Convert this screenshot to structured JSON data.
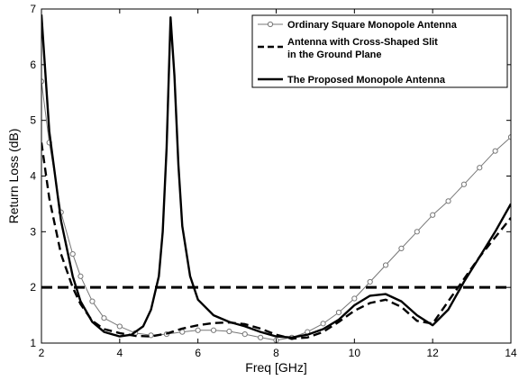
{
  "chart_data": {
    "type": "line",
    "xlabel": "Freq [GHz]",
    "ylabel": "Return Loss (dB)",
    "xlim": [
      2,
      14
    ],
    "ylim": [
      1,
      7
    ],
    "xticks": [
      2,
      4,
      6,
      8,
      10,
      12,
      14
    ],
    "yticks": [
      1,
      2,
      3,
      4,
      5,
      6,
      7
    ],
    "grid": false,
    "legend_position": "top-right",
    "reference_line": {
      "y": 2,
      "style": "dashed"
    },
    "series": [
      {
        "name": "Ordinary Square Monopole Antenna",
        "style": "circle-markers",
        "color": "#777777",
        "x": [
          2.0,
          2.2,
          2.5,
          2.8,
          3.0,
          3.3,
          3.6,
          4.0,
          4.4,
          4.8,
          5.2,
          5.6,
          6.0,
          6.4,
          6.8,
          7.2,
          7.6,
          8.0,
          8.4,
          8.8,
          9.2,
          9.6,
          10.0,
          10.4,
          10.8,
          11.2,
          11.6,
          12.0,
          12.4,
          12.8,
          13.2,
          13.6,
          14.0
        ],
        "y": [
          5.7,
          4.6,
          3.35,
          2.6,
          2.2,
          1.75,
          1.45,
          1.3,
          1.18,
          1.14,
          1.16,
          1.2,
          1.23,
          1.23,
          1.21,
          1.16,
          1.1,
          1.05,
          1.1,
          1.2,
          1.35,
          1.55,
          1.8,
          2.1,
          2.4,
          2.7,
          3.0,
          3.3,
          3.55,
          3.85,
          4.15,
          4.45,
          4.7
        ]
      },
      {
        "name": "Antenna with Cross-Shaped Slit in the Ground Plane",
        "style": "dashed",
        "color": "#000000",
        "x": [
          2.0,
          2.2,
          2.5,
          2.8,
          3.0,
          3.3,
          3.6,
          4.0,
          4.4,
          4.8,
          5.2,
          5.6,
          6.0,
          6.4,
          6.8,
          7.2,
          7.6,
          8.0,
          8.4,
          8.8,
          9.2,
          9.6,
          10.0,
          10.4,
          10.8,
          11.2,
          11.6,
          12.0,
          12.4,
          12.8,
          13.2,
          13.6,
          14.0
        ],
        "y": [
          4.6,
          3.6,
          2.6,
          2.0,
          1.7,
          1.4,
          1.25,
          1.18,
          1.13,
          1.12,
          1.17,
          1.26,
          1.32,
          1.36,
          1.37,
          1.34,
          1.26,
          1.15,
          1.08,
          1.1,
          1.2,
          1.38,
          1.58,
          1.72,
          1.78,
          1.65,
          1.4,
          1.35,
          1.75,
          2.15,
          2.55,
          2.9,
          3.25
        ]
      },
      {
        "name": "The Proposed Monopole Antenna",
        "style": "solid",
        "color": "#000000",
        "x": [
          2.0,
          2.2,
          2.5,
          2.8,
          3.0,
          3.3,
          3.6,
          4.0,
          4.3,
          4.6,
          4.8,
          5.0,
          5.1,
          5.2,
          5.3,
          5.4,
          5.5,
          5.6,
          5.8,
          6.0,
          6.4,
          6.8,
          7.2,
          7.6,
          8.0,
          8.4,
          8.8,
          9.2,
          9.6,
          10.0,
          10.4,
          10.8,
          11.2,
          11.6,
          12.0,
          12.4,
          12.8,
          13.2,
          13.6,
          14.0
        ],
        "y": [
          6.9,
          4.8,
          3.2,
          2.2,
          1.75,
          1.38,
          1.2,
          1.12,
          1.15,
          1.3,
          1.6,
          2.2,
          3.0,
          4.5,
          6.85,
          5.8,
          4.2,
          3.1,
          2.2,
          1.78,
          1.5,
          1.38,
          1.3,
          1.2,
          1.12,
          1.1,
          1.15,
          1.25,
          1.42,
          1.68,
          1.85,
          1.88,
          1.75,
          1.5,
          1.32,
          1.6,
          2.1,
          2.55,
          3.0,
          3.5
        ]
      }
    ]
  }
}
